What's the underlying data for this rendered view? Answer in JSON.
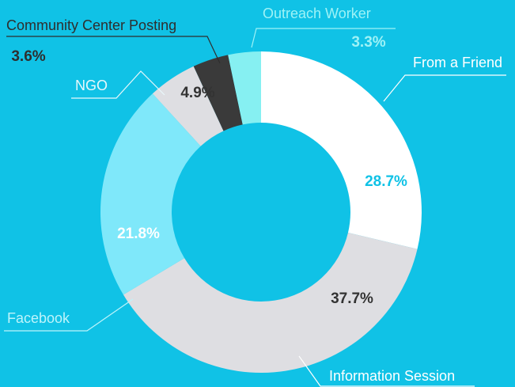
{
  "chart_data": {
    "type": "pie",
    "donut": true,
    "categories": [
      "From a Friend",
      "Information Session",
      "Facebook",
      "NGO",
      "Community Center Posting",
      "Outreach Worker"
    ],
    "values": [
      28.7,
      37.7,
      21.8,
      4.9,
      3.6,
      3.3
    ],
    "value_labels": [
      "28.7%",
      "37.7%",
      "21.8%",
      "4.9%",
      "3.6%",
      "3.3%"
    ],
    "colors": [
      "#ffffff",
      "#dedee2",
      "#7fe8fa",
      "#dedee2",
      "#3a3a3a",
      "#86f0f2"
    ]
  }
}
